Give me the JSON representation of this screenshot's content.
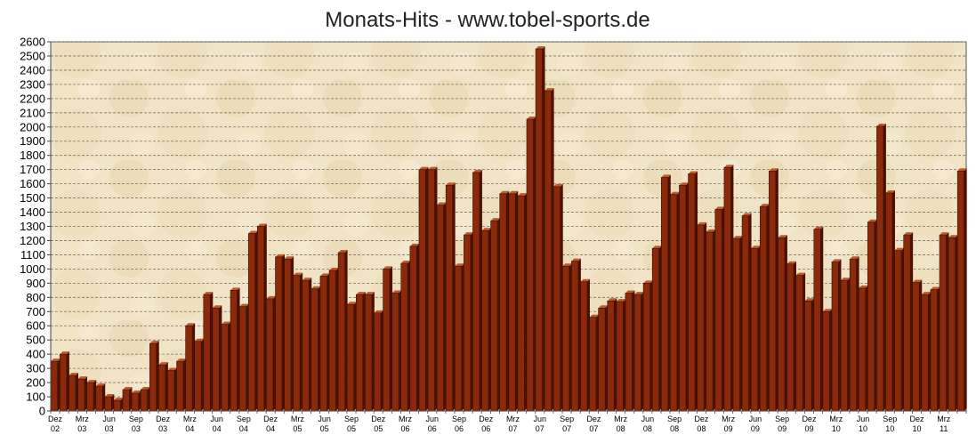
{
  "colors": {
    "plot_bg": "#f1e4c6",
    "plot_bg_dark": "#e3cfa4",
    "bar_front": "#8a2a0a",
    "bar_side": "#4a1204",
    "bar_top": "#c0582a",
    "grid": "#7a7060",
    "axis": "#444444"
  },
  "chart_data": {
    "type": "bar",
    "title": "Monats-Hits - www.tobel-sports.de",
    "xlabel": "",
    "ylabel": "",
    "ylim": [
      0,
      2600
    ],
    "ytick_step": 100,
    "grid": true,
    "legend": "none",
    "categories": [
      "Dez 02",
      "Jan 03",
      "Feb 03",
      "Mrz 03",
      "Apr 03",
      "Mai 03",
      "Jun 03",
      "Jul 03",
      "Aug 03",
      "Sep 03",
      "Okt 03",
      "Nov 03",
      "Dez 03",
      "Jan 04",
      "Feb 04",
      "Mrz 04",
      "Apr 04",
      "Mai 04",
      "Jun 04",
      "Jul 04",
      "Aug 04",
      "Sep 04",
      "Okt 04",
      "Nov 04",
      "Dez 04",
      "Jan 05",
      "Feb 05",
      "Mrz 05",
      "Apr 05",
      "Mai 05",
      "Jun 05",
      "Jul 05",
      "Aug 05",
      "Sep 05",
      "Okt 05",
      "Nov 05",
      "Dez 05",
      "Jan 06",
      "Feb 06",
      "Mrz 06",
      "Apr 06",
      "Mai 06",
      "Jun 06",
      "Jul 06",
      "Aug 06",
      "Sep 06",
      "Okt 06",
      "Nov 06",
      "Dez 06",
      "Jan 07",
      "Feb 07",
      "Mrz 07",
      "Apr 07",
      "Mai 07",
      "Jun 07",
      "Jul 07",
      "Aug 07",
      "Sep 07",
      "Okt 07",
      "Nov 07",
      "Dez 07",
      "Jan 08",
      "Feb 08",
      "Mrz 08",
      "Apr 08",
      "Mai 08",
      "Jun 08",
      "Jul 08",
      "Aug 08",
      "Sep 08",
      "Okt 08",
      "Nov 08",
      "Dez 08",
      "Jan 09",
      "Feb 09",
      "Mrz 09",
      "Apr 09",
      "Mai 09",
      "Jun 09",
      "Jul 09",
      "Aug 09",
      "Sep 09",
      "Okt 09",
      "Nov 09",
      "Dez 09",
      "Jan 10",
      "Feb 10",
      "Mrz 10",
      "Apr 10",
      "Mai 10",
      "Jun 10",
      "Jul 10",
      "Aug 10",
      "Sep 10",
      "Okt 10",
      "Nov 10",
      "Dez 10",
      "Jan 11",
      "Feb 11",
      "Mrz 11",
      "Apr 11",
      "Mai 11"
    ],
    "values": [
      350,
      400,
      250,
      225,
      200,
      175,
      100,
      75,
      150,
      125,
      150,
      475,
      325,
      285,
      350,
      600,
      490,
      820,
      725,
      610,
      850,
      735,
      1250,
      1300,
      790,
      1085,
      1070,
      955,
      920,
      860,
      950,
      990,
      1115,
      750,
      820,
      820,
      690,
      1000,
      830,
      1040,
      1160,
      1700,
      1700,
      1450,
      1590,
      1020,
      1240,
      1680,
      1270,
      1340,
      1530,
      1530,
      1515,
      2055,
      2550,
      2255,
      1580,
      1020,
      1055,
      910,
      660,
      725,
      775,
      770,
      830,
      820,
      900,
      1145,
      1645,
      1525,
      1590,
      1670,
      1310,
      1260,
      1420,
      1715,
      1215,
      1375,
      1145,
      1440,
      1690,
      1220,
      1035,
      955,
      775,
      1280,
      700,
      1050,
      920,
      1070,
      865,
      1330,
      2005,
      1535,
      1130,
      1240,
      905,
      820,
      855,
      1240,
      1220,
      1690
    ],
    "xtick_labels": [
      {
        "index": 0,
        "line1": "Dez",
        "line2": "02"
      },
      {
        "index": 3,
        "line1": "Mrz",
        "line2": "03"
      },
      {
        "index": 6,
        "line1": "Jun",
        "line2": "03"
      },
      {
        "index": 9,
        "line1": "Sep",
        "line2": "03"
      },
      {
        "index": 12,
        "line1": "Dez",
        "line2": "03"
      },
      {
        "index": 15,
        "line1": "Mrz",
        "line2": "04"
      },
      {
        "index": 18,
        "line1": "Jun",
        "line2": "04"
      },
      {
        "index": 21,
        "line1": "Sep",
        "line2": "04"
      },
      {
        "index": 24,
        "line1": "Dez",
        "line2": "04"
      },
      {
        "index": 27,
        "line1": "Mrz",
        "line2": "05"
      },
      {
        "index": 30,
        "line1": "Jun",
        "line2": "05"
      },
      {
        "index": 33,
        "line1": "Sep",
        "line2": "05"
      },
      {
        "index": 36,
        "line1": "Dez",
        "line2": "05"
      },
      {
        "index": 39,
        "line1": "Mrz",
        "line2": "06"
      },
      {
        "index": 42,
        "line1": "Jun",
        "line2": "06"
      },
      {
        "index": 45,
        "line1": "Sep",
        "line2": "06"
      },
      {
        "index": 48,
        "line1": "Dez",
        "line2": "06"
      },
      {
        "index": 51,
        "line1": "Mrz",
        "line2": "07"
      },
      {
        "index": 54,
        "line1": "Jun",
        "line2": "07"
      },
      {
        "index": 57,
        "line1": "Sep",
        "line2": "07"
      },
      {
        "index": 60,
        "line1": "Dez",
        "line2": "07"
      },
      {
        "index": 63,
        "line1": "Mrz",
        "line2": "08"
      },
      {
        "index": 66,
        "line1": "Jun",
        "line2": "08"
      },
      {
        "index": 69,
        "line1": "Sep",
        "line2": "08"
      },
      {
        "index": 72,
        "line1": "Dez",
        "line2": "08"
      },
      {
        "index": 75,
        "line1": "Mrz",
        "line2": "09"
      },
      {
        "index": 78,
        "line1": "Jun",
        "line2": "09"
      },
      {
        "index": 81,
        "line1": "Sep",
        "line2": "09"
      },
      {
        "index": 84,
        "line1": "Dez",
        "line2": "09"
      },
      {
        "index": 87,
        "line1": "Mrz",
        "line2": "10"
      },
      {
        "index": 90,
        "line1": "Jun",
        "line2": "10"
      },
      {
        "index": 93,
        "line1": "Sep",
        "line2": "10"
      },
      {
        "index": 96,
        "line1": "Dez",
        "line2": "10"
      },
      {
        "index": 99,
        "line1": "Mrz",
        "line2": "11"
      }
    ]
  }
}
